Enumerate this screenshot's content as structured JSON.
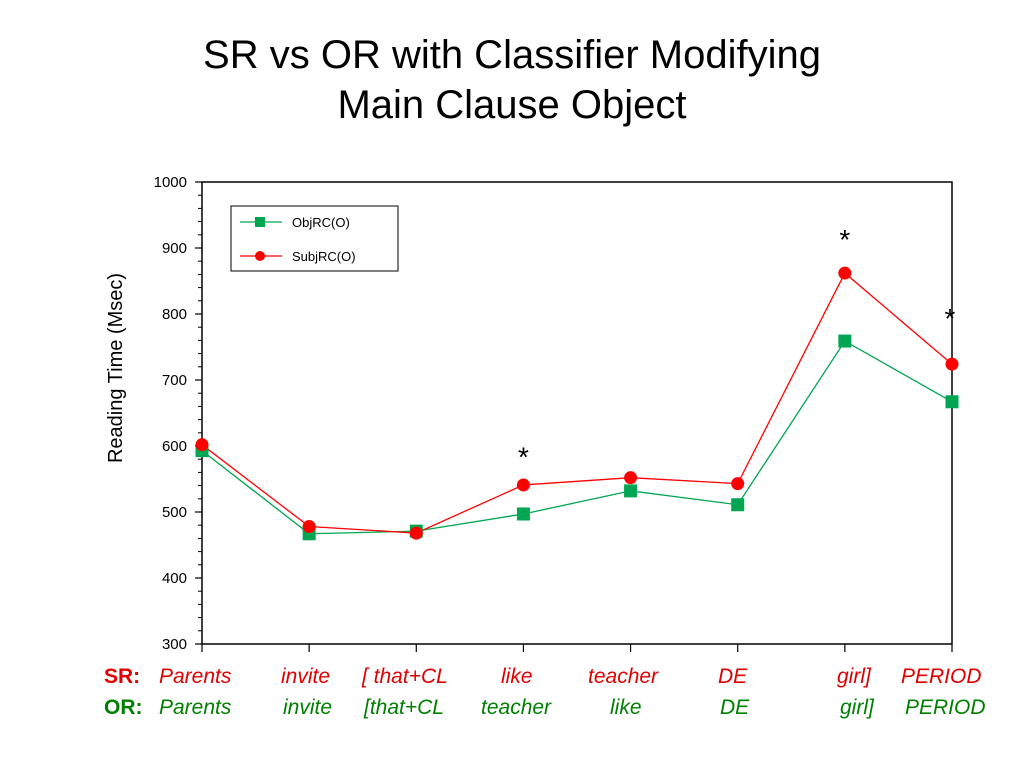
{
  "title_line1": "SR vs OR with Classifier Modifying",
  "title_line2": "Main Clause Object",
  "chart_data": {
    "type": "line",
    "title": "SR vs OR with Classifier Modifying Main Clause Object",
    "ylabel": "Reading Time (Msec)",
    "xlabel": "",
    "ylim": [
      300,
      1000
    ],
    "yticks": [
      300,
      400,
      500,
      600,
      700,
      800,
      900,
      1000
    ],
    "x": [
      1,
      2,
      3,
      4,
      5,
      6,
      7,
      8
    ],
    "legend_position": "top-left",
    "grid": false,
    "series": [
      {
        "name": "ObjRC(O)",
        "color": "#00a651",
        "marker": "square",
        "values": [
          593,
          467,
          471,
          497,
          532,
          511,
          759,
          667
        ]
      },
      {
        "name": "SubjRC(O)",
        "color": "#ff0000",
        "marker": "circle",
        "values": [
          602,
          478,
          468,
          541,
          552,
          543,
          862,
          724
        ]
      }
    ],
    "annotations": [
      {
        "text": "*",
        "x": 4,
        "y": 590
      },
      {
        "text": "*",
        "x": 7,
        "y": 920
      },
      {
        "text": "*",
        "x": 8,
        "y": 800
      }
    ]
  },
  "sr_row": {
    "prefix": "SR:",
    "words": [
      "Parents",
      "invite",
      "[ that+CL",
      "like",
      "teacher",
      "DE",
      "girl]",
      "PERIOD"
    ]
  },
  "or_row": {
    "prefix": "OR:",
    "words": [
      "Parents",
      "invite",
      "[that+CL",
      "teacher",
      "like",
      "DE",
      "girl]",
      "PERIOD"
    ]
  }
}
